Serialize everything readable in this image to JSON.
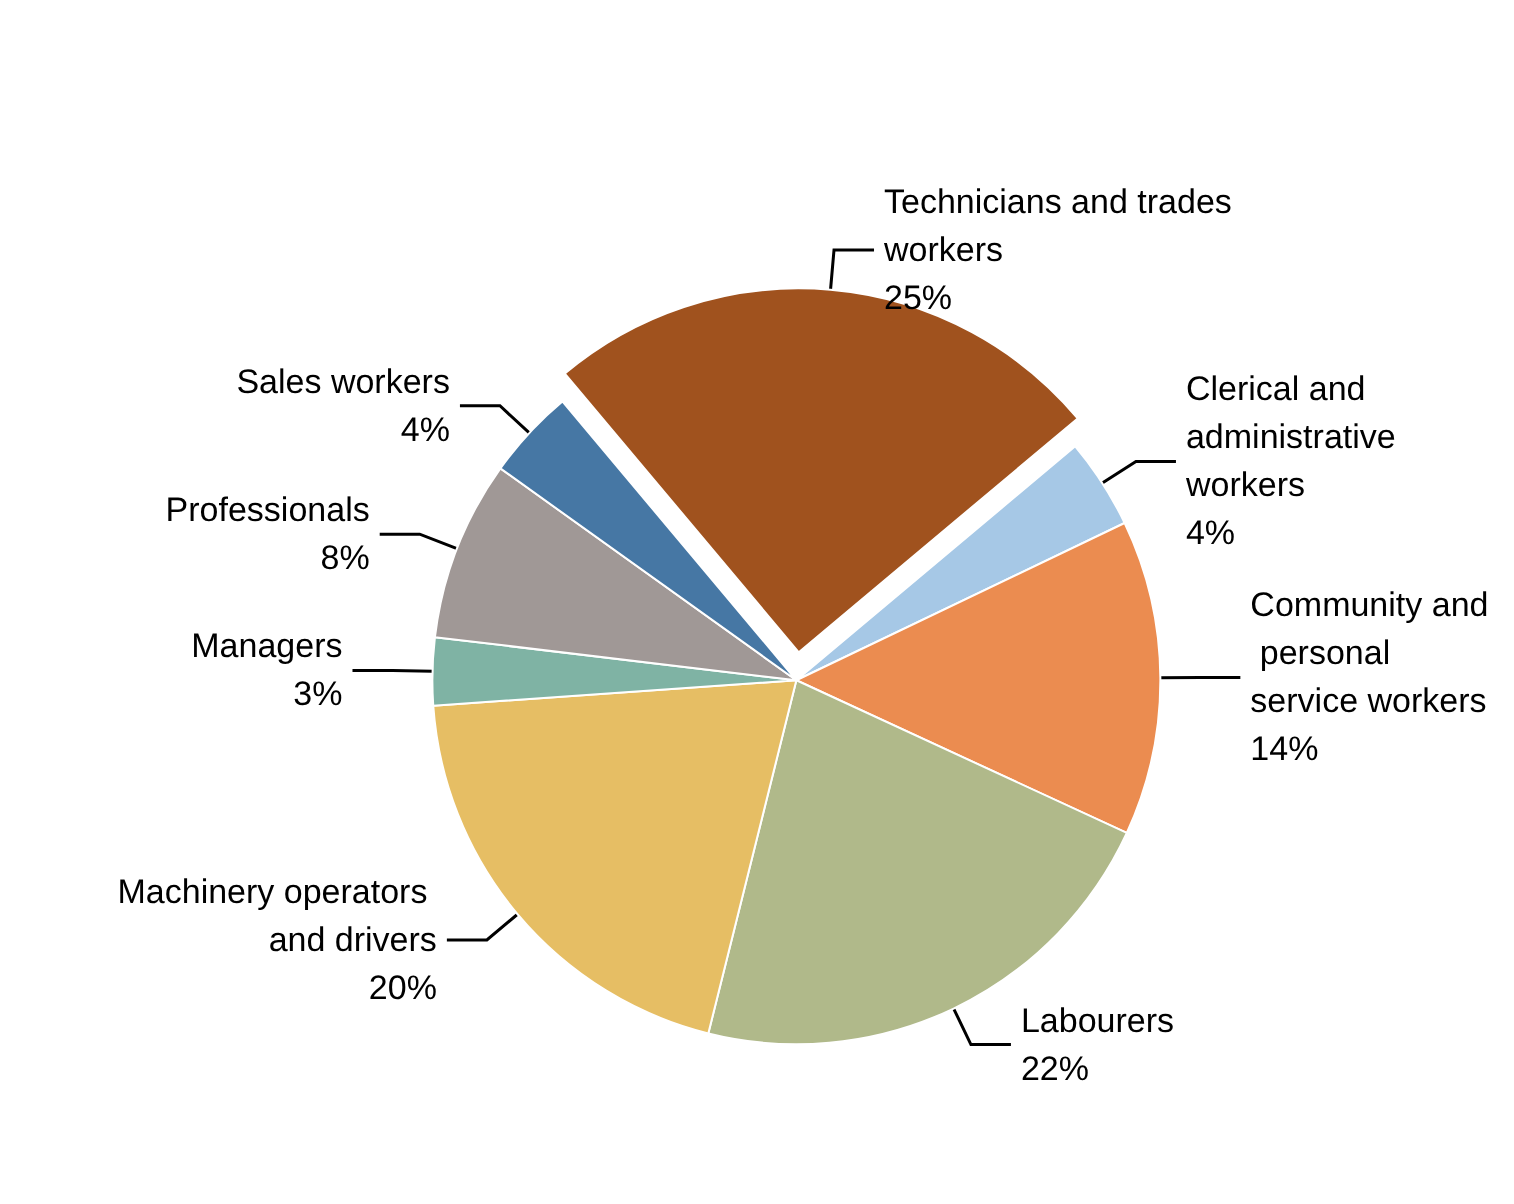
{
  "chart_data": {
    "type": "pie",
    "categories": [
      "Clerical and administrative workers",
      "Community and personal service workers",
      "Labourers",
      "Machinery operators and drivers",
      "Managers",
      "Professionals",
      "Sales workers",
      "Technicians and trades workers"
    ],
    "values": [
      4,
      14,
      22,
      20,
      3,
      8,
      4,
      25
    ],
    "value_labels": [
      "4%",
      "14%",
      "22%",
      "20%",
      "3%",
      "8%",
      "4%",
      "25%"
    ],
    "colors": [
      "#a6c8e6",
      "#eb8c50",
      "#b0b98a",
      "#e6be64",
      "#7fb3a4",
      "#a09896",
      "#4677a4",
      "#a0521e"
    ],
    "legend": false
  }
}
